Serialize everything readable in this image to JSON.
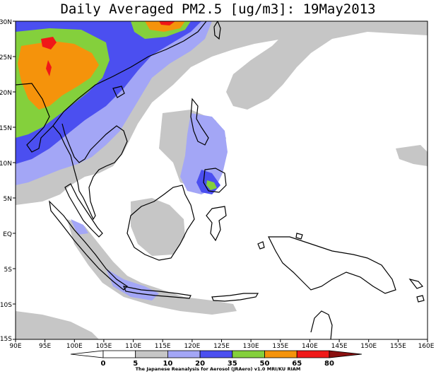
{
  "title": "Daily Averaged PM2.5 [ug/m3]: 19May2013",
  "credit": "The Japanese Reanalysis for Aerosol (JRAero) v1.0 MRI/KU RIAM",
  "map": {
    "lon_range": [
      90,
      160
    ],
    "lat_range": [
      -15,
      30
    ],
    "x_ticks": [
      "90E",
      "95E",
      "100E",
      "105E",
      "110E",
      "115E",
      "120E",
      "125E",
      "130E",
      "135E",
      "140E",
      "145E",
      "150E",
      "155E",
      "160E"
    ],
    "y_ticks": [
      "30N",
      "25N",
      "20N",
      "15N",
      "10N",
      "5N",
      "EQ",
      "5S",
      "10S",
      "15S"
    ]
  },
  "colorbar": {
    "labels": [
      "0",
      "5",
      "10",
      "20",
      "35",
      "50",
      "65",
      "80"
    ],
    "colors": [
      "#ffffff",
      "#ffffff",
      "#c6c6c6",
      "#a3a6f6",
      "#4b4ff0",
      "#84d03c",
      "#f5930b",
      "#f01818",
      "#8a1010"
    ]
  },
  "legend_colors": {
    "white": "#ffffff",
    "gray": "#c6c6c6",
    "light_blue": "#a3a6f6",
    "blue": "#4b4ff0",
    "green": "#84d03c",
    "orange": "#f5930b",
    "red": "#f01818",
    "dark_red": "#8a1010",
    "coast": "#000000"
  }
}
